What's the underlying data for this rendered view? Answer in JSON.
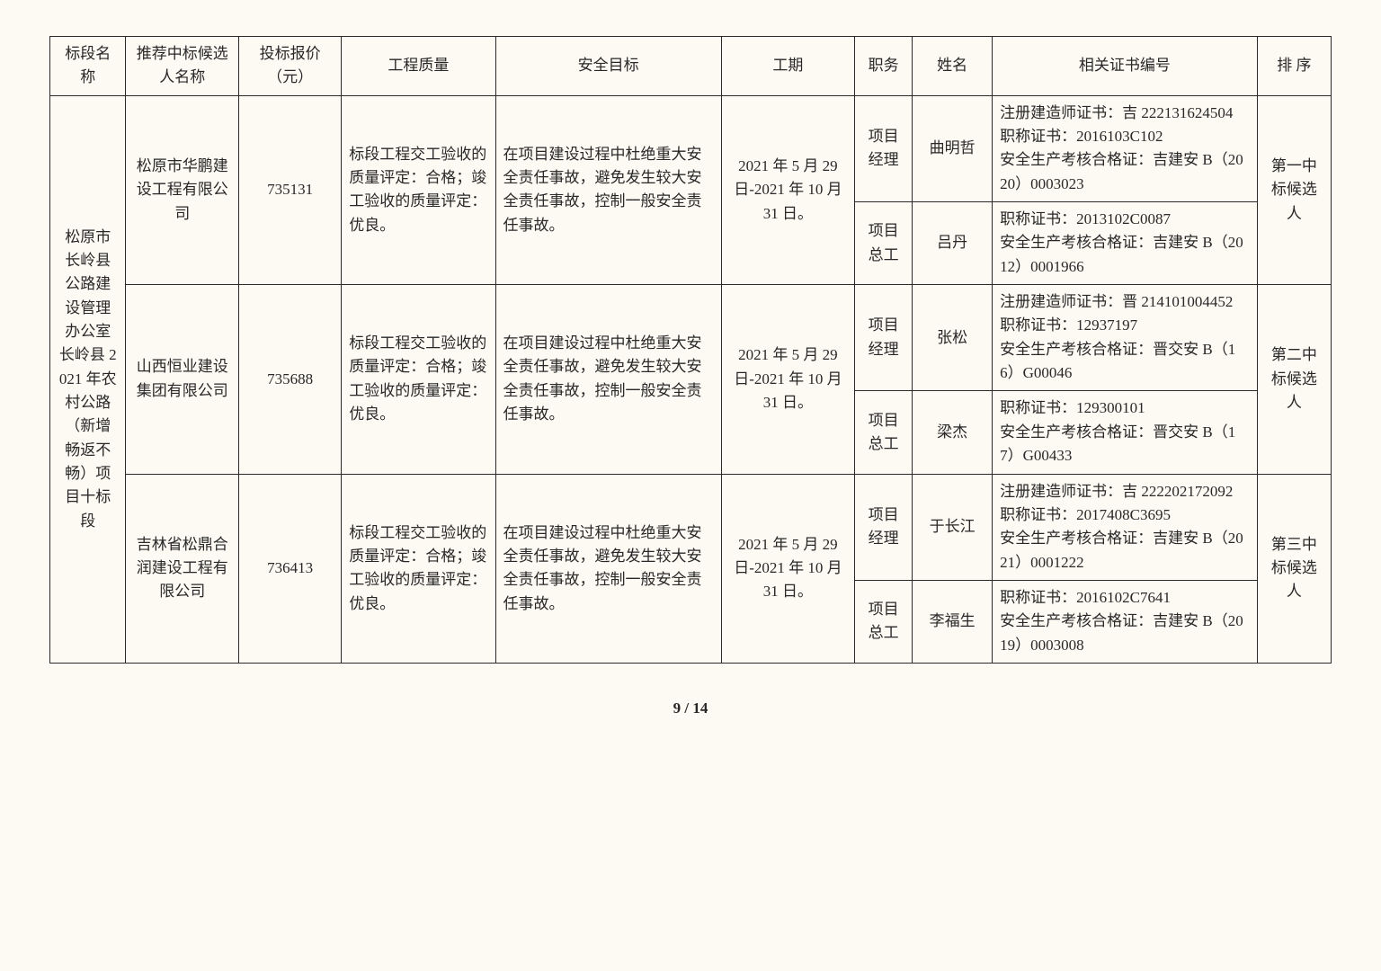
{
  "headers": {
    "section": "标段名称",
    "bidder": "推荐中标候选人名称",
    "price": "投标报价（元）",
    "quality": "工程质量",
    "safety": "安全目标",
    "period": "工期",
    "role": "职务",
    "name": "姓名",
    "cert": "相关证书编号",
    "rank": "排 序"
  },
  "section_name": "松原市长岭县公路建设管理办公室长岭县 2021 年农村公路（新增畅返不畅）项目十标段",
  "candidates": [
    {
      "bidder": "松原市华鹏建设工程有限公司",
      "price": "735131",
      "quality": "标段工程交工验收的质量评定：合格；竣工验收的质量评定：优良。",
      "safety": "在项目建设过程中杜绝重大安全责任事故，避免发生较大安全责任事故，控制一般安全责任事故。",
      "period": "2021 年 5 月 29 日-2021 年 10 月 31 日。",
      "rank": "第一中标候选人",
      "staff": [
        {
          "role": "项目经理",
          "name": "曲明哲",
          "cert": "注册建造师证书：吉 222131624504\n职称证书：2016103C102\n安全生产考核合格证：吉建安 B（2020）0003023"
        },
        {
          "role": "项目总工",
          "name": "吕丹",
          "cert": "职称证书：2013102C0087\n安全生产考核合格证：吉建安 B（2012）0001966"
        }
      ]
    },
    {
      "bidder": "山西恒业建设集团有限公司",
      "price": "735688",
      "quality": "标段工程交工验收的质量评定：合格；竣工验收的质量评定：优良。",
      "safety": "在项目建设过程中杜绝重大安全责任事故，避免发生较大安全责任事故，控制一般安全责任事故。",
      "period": "2021 年 5 月 29 日-2021 年 10 月 31 日。",
      "rank": "第二中标候选人",
      "staff": [
        {
          "role": "项目经理",
          "name": "张松",
          "cert": "注册建造师证书：晋 214101004452\n职称证书：12937197\n安全生产考核合格证：晋交安 B（16）G00046"
        },
        {
          "role": "项目总工",
          "name": "梁杰",
          "cert": "职称证书：129300101\n安全生产考核合格证：晋交安 B（17）G00433"
        }
      ]
    },
    {
      "bidder": "吉林省松鼎合润建设工程有限公司",
      "price": "736413",
      "quality": "标段工程交工验收的质量评定：合格；竣工验收的质量评定：优良。",
      "safety": "在项目建设过程中杜绝重大安全责任事故，避免发生较大安全责任事故，控制一般安全责任事故。",
      "period": "2021 年 5 月 29 日-2021 年 10 月 31 日。",
      "rank": "第三中标候选人",
      "staff": [
        {
          "role": "项目经理",
          "name": "于长江",
          "cert": "注册建造师证书：吉 222202172092\n职称证书：2017408C3695\n安全生产考核合格证：吉建安 B（2021）0001222"
        },
        {
          "role": "项目总工",
          "name": "李福生",
          "cert": "职称证书：2016102C7641\n安全生产考核合格证：吉建安 B（2019）0003008"
        }
      ]
    }
  ],
  "footer": "9 / 14"
}
